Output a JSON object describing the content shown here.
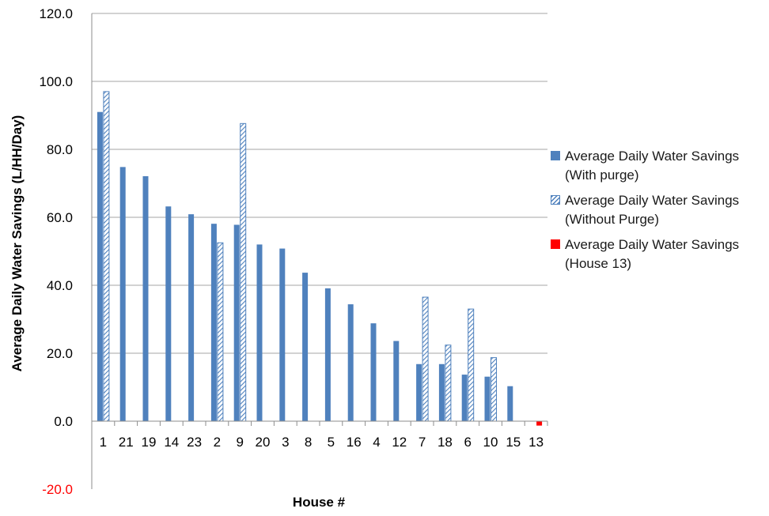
{
  "chart_data": {
    "type": "bar",
    "title": "",
    "xlabel": "House #",
    "ylabel": "Average Daily Water Savings (L/HH/Day)",
    "ylim": [
      -20,
      120
    ],
    "yticks": [
      "-20.0",
      "0.0",
      "20.0",
      "40.0",
      "60.0",
      "80.0",
      "100.0",
      "120.0"
    ],
    "ytick_values": [
      -20,
      0,
      20,
      40,
      60,
      80,
      100,
      120
    ],
    "grid": true,
    "legend_position": "right",
    "categories": [
      "1",
      "21",
      "19",
      "14",
      "23",
      "2",
      "9",
      "20",
      "3",
      "8",
      "5",
      "16",
      "4",
      "12",
      "7",
      "18",
      "6",
      "10",
      "15",
      "13"
    ],
    "series": [
      {
        "name": "Average Daily Water Savings (With purge)",
        "legend_lines": [
          "Average Daily Water Savings",
          "(With purge)"
        ],
        "style": "solid",
        "color": "#4f81bd",
        "values": [
          91.0,
          74.8,
          72.1,
          63.2,
          60.9,
          58.1,
          57.8,
          52.0,
          50.8,
          43.7,
          39.1,
          34.4,
          28.8,
          23.6,
          16.8,
          16.8,
          13.7,
          13.1,
          10.3,
          null
        ]
      },
      {
        "name": "Average Daily Water Savings (Without Purge)",
        "legend_lines": [
          "Average Daily Water Savings",
          "(Without Purge)"
        ],
        "style": "hatched",
        "color": "#4f81bd",
        "values": [
          97.0,
          null,
          null,
          null,
          null,
          52.5,
          87.6,
          null,
          null,
          null,
          null,
          null,
          null,
          null,
          36.5,
          22.4,
          33.0,
          18.7,
          null,
          null
        ]
      },
      {
        "name": "Average Daily Water Savings (House 13)",
        "legend_lines": [
          "Average Daily Water Savings",
          "(House 13)"
        ],
        "style": "solid",
        "color": "#ff0000",
        "values": [
          null,
          null,
          null,
          null,
          null,
          null,
          null,
          null,
          null,
          null,
          null,
          null,
          null,
          null,
          null,
          null,
          null,
          null,
          null,
          -1.3
        ]
      }
    ],
    "negative_tick_color": "#ff0000"
  }
}
